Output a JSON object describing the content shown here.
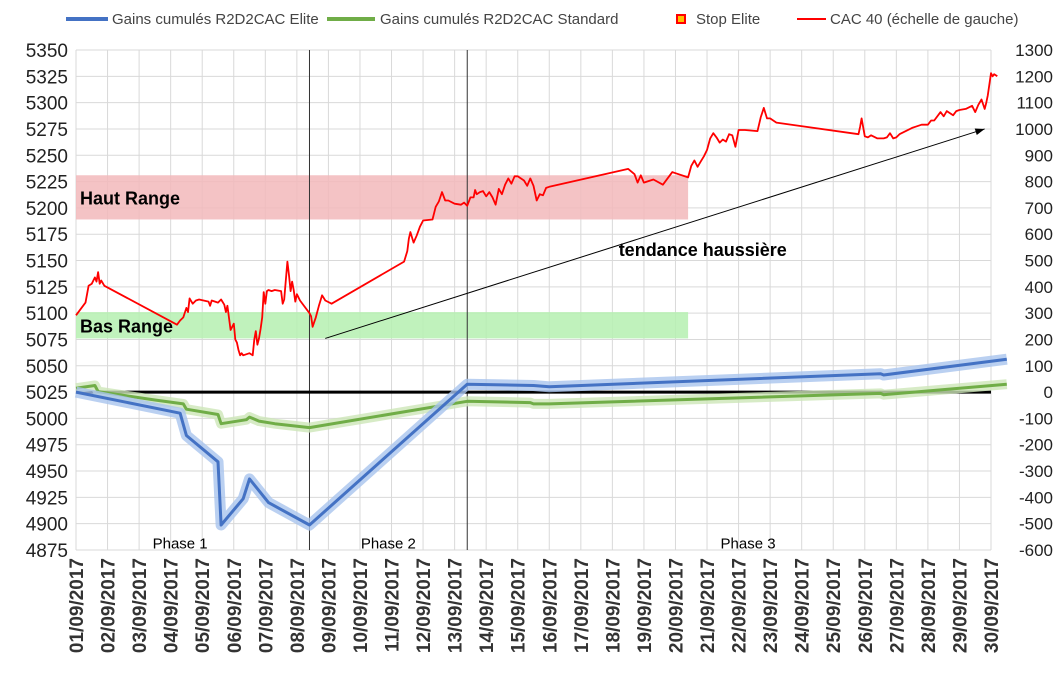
{
  "chart_data": {
    "type": "line",
    "legend_placement": "top",
    "grid": true,
    "colors": {
      "elite": "#4472c4",
      "elite_glow": "#a9c4ee",
      "standard": "#70ad47",
      "standard_glow": "#cde6b8",
      "cac40": "#ff0000",
      "stop_marker": "#ffc000",
      "haut_range": "#f2b8bb",
      "bas_range": "#b5f0b0",
      "zero_line": "#000000",
      "grid": "#d9d9d9"
    },
    "legend": [
      {
        "key": "elite",
        "label": "Gains cumulés R2D2CAC Elite",
        "kind": "line"
      },
      {
        "key": "standard",
        "label": "Gains cumulés R2D2CAC Standard",
        "kind": "line"
      },
      {
        "key": "stop",
        "label": "Stop Elite",
        "kind": "marker"
      },
      {
        "key": "cac40",
        "label": "CAC 40 (échelle de gauche)",
        "kind": "line"
      }
    ],
    "x_tick_labels": [
      "01/09/2017",
      "02/09/2017",
      "03/09/2017",
      "04/09/2017",
      "05/09/2017",
      "06/09/2017",
      "07/09/2017",
      "08/09/2017",
      "09/09/2017",
      "10/09/2017",
      "11/09/2017",
      "12/09/2017",
      "13/09/2017",
      "14/09/2017",
      "15/09/2017",
      "16/09/2017",
      "17/09/2017",
      "18/09/2017",
      "19/09/2017",
      "20/09/2017",
      "21/09/2017",
      "22/09/2017",
      "23/09/2017",
      "24/09/2017",
      "25/09/2017",
      "26/09/2017",
      "27/09/2017",
      "28/09/2017",
      "29/09/2017",
      "30/09/2017"
    ],
    "xlim": [
      0,
      29
    ],
    "y_left": {
      "ylim": [
        4875,
        5350
      ],
      "ticks": [
        4875,
        4900,
        4925,
        4950,
        4975,
        5000,
        5025,
        5050,
        5075,
        5100,
        5125,
        5150,
        5175,
        5200,
        5225,
        5250,
        5275,
        5300,
        5325,
        5350
      ]
    },
    "y_right": {
      "ylim": [
        -600,
        1300
      ],
      "ticks": [
        -600,
        -500,
        -400,
        -300,
        -200,
        -100,
        0,
        100,
        200,
        300,
        400,
        500,
        600,
        700,
        800,
        900,
        1000,
        1100,
        1200,
        1300
      ]
    },
    "bands": [
      {
        "label": "Haut Range",
        "x_start": 0,
        "x_end": 19.4,
        "y_low": 5189,
        "y_high": 5231,
        "color_key": "haut_range"
      },
      {
        "label": "Bas Range",
        "x_start": 0,
        "x_end": 19.4,
        "y_low": 5076,
        "y_high": 5101,
        "color_key": "bas_range"
      }
    ],
    "vertical_lines": [
      7.4,
      12.4
    ],
    "phases": [
      {
        "label": "Phase 1",
        "x": 3.3
      },
      {
        "label": "Phase 2",
        "x": 9.9
      },
      {
        "label": "Phase 3",
        "x": 21.3
      }
    ],
    "trend": {
      "label": "tendance haussière",
      "from": [
        7.9,
        5076
      ],
      "to": [
        28.8,
        5275
      ]
    },
    "series": [
      {
        "name": "CAC 40 (échelle de gauche)",
        "key": "cac40",
        "axis": "left",
        "points": [
          [
            0,
            5098
          ],
          [
            0.3,
            5110
          ],
          [
            0.4,
            5126
          ],
          [
            0.5,
            5128
          ],
          [
            0.6,
            5134
          ],
          [
            0.65,
            5130
          ],
          [
            0.7,
            5139
          ],
          [
            0.75,
            5128
          ],
          [
            0.8,
            5131
          ],
          [
            0.9,
            5126
          ],
          [
            3.2,
            5089
          ],
          [
            3.3,
            5093
          ],
          [
            3.4,
            5096
          ],
          [
            3.5,
            5105
          ],
          [
            3.55,
            5101
          ],
          [
            3.6,
            5114
          ],
          [
            3.7,
            5109
          ],
          [
            3.8,
            5112
          ],
          [
            3.9,
            5113
          ],
          [
            4.2,
            5111
          ],
          [
            4.25,
            5107
          ],
          [
            4.3,
            5112
          ],
          [
            4.5,
            5110
          ],
          [
            4.6,
            5113
          ],
          [
            4.7,
            5108
          ],
          [
            4.75,
            5101
          ],
          [
            4.8,
            5107
          ],
          [
            4.9,
            5084
          ],
          [
            5.0,
            5090
          ],
          [
            5.05,
            5075
          ],
          [
            5.1,
            5072
          ],
          [
            5.15,
            5065
          ],
          [
            5.2,
            5060
          ],
          [
            5.25,
            5062
          ],
          [
            5.3,
            5060
          ],
          [
            5.5,
            5062
          ],
          [
            5.6,
            5060
          ],
          [
            5.65,
            5075
          ],
          [
            5.7,
            5083
          ],
          [
            5.75,
            5070
          ],
          [
            5.8,
            5076
          ],
          [
            5.85,
            5085
          ],
          [
            5.9,
            5096
          ],
          [
            5.95,
            5120
          ],
          [
            6.0,
            5109
          ],
          [
            6.05,
            5121
          ],
          [
            6.1,
            5122
          ],
          [
            6.2,
            5121
          ],
          [
            6.3,
            5122
          ],
          [
            6.5,
            5121
          ],
          [
            6.55,
            5109
          ],
          [
            6.6,
            5113
          ],
          [
            6.7,
            5149
          ],
          [
            6.75,
            5136
          ],
          [
            6.8,
            5121
          ],
          [
            6.85,
            5130
          ],
          [
            6.9,
            5122
          ],
          [
            6.95,
            5111
          ],
          [
            7.0,
            5118
          ],
          [
            7.1,
            5112
          ],
          [
            7.4,
            5100
          ],
          [
            7.45,
            5097
          ],
          [
            7.5,
            5087
          ],
          [
            7.6,
            5096
          ],
          [
            7.7,
            5107
          ],
          [
            7.8,
            5117
          ],
          [
            7.9,
            5112
          ],
          [
            8.1,
            5109
          ],
          [
            10.4,
            5149
          ],
          [
            10.5,
            5159
          ],
          [
            10.55,
            5171
          ],
          [
            10.6,
            5177
          ],
          [
            10.7,
            5167
          ],
          [
            10.8,
            5174
          ],
          [
            10.9,
            5182
          ],
          [
            11.0,
            5188
          ],
          [
            11.3,
            5189
          ],
          [
            11.4,
            5201
          ],
          [
            11.5,
            5206
          ],
          [
            11.6,
            5215
          ],
          [
            11.7,
            5207
          ],
          [
            11.8,
            5207
          ],
          [
            12.0,
            5204
          ],
          [
            12.2,
            5203
          ],
          [
            12.3,
            5205
          ],
          [
            12.4,
            5202
          ],
          [
            12.5,
            5210
          ],
          [
            12.6,
            5210
          ],
          [
            12.65,
            5217
          ],
          [
            12.7,
            5213
          ],
          [
            12.8,
            5215
          ],
          [
            12.9,
            5216
          ],
          [
            13.0,
            5211
          ],
          [
            13.1,
            5215
          ],
          [
            13.2,
            5210
          ],
          [
            13.3,
            5203
          ],
          [
            13.4,
            5218
          ],
          [
            13.5,
            5213
          ],
          [
            13.6,
            5222
          ],
          [
            13.7,
            5228
          ],
          [
            13.8,
            5223
          ],
          [
            13.9,
            5230
          ],
          [
            14.0,
            5230
          ],
          [
            14.2,
            5226
          ],
          [
            14.3,
            5221
          ],
          [
            14.4,
            5228
          ],
          [
            14.5,
            5221
          ],
          [
            14.6,
            5207
          ],
          [
            14.7,
            5213
          ],
          [
            14.8,
            5212
          ],
          [
            14.9,
            5219
          ],
          [
            15.0,
            5220
          ],
          [
            17.5,
            5237
          ],
          [
            17.7,
            5232
          ],
          [
            17.8,
            5224
          ],
          [
            17.9,
            5231
          ],
          [
            18.0,
            5224
          ],
          [
            18.3,
            5227
          ],
          [
            18.6,
            5222
          ],
          [
            18.9,
            5234
          ],
          [
            19.0,
            5233
          ],
          [
            19.4,
            5229
          ],
          [
            19.5,
            5240
          ],
          [
            19.6,
            5245
          ],
          [
            19.7,
            5239
          ],
          [
            19.8,
            5244
          ],
          [
            19.9,
            5249
          ],
          [
            20.0,
            5255
          ],
          [
            20.1,
            5266
          ],
          [
            20.2,
            5271
          ],
          [
            20.3,
            5267
          ],
          [
            20.4,
            5262
          ],
          [
            20.5,
            5265
          ],
          [
            20.6,
            5263
          ],
          [
            20.7,
            5270
          ],
          [
            20.8,
            5269
          ],
          [
            20.9,
            5258
          ],
          [
            21.0,
            5274
          ],
          [
            21.2,
            5274
          ],
          [
            21.6,
            5273
          ],
          [
            21.7,
            5286
          ],
          [
            21.8,
            5295
          ],
          [
            21.9,
            5285
          ],
          [
            22.0,
            5285
          ],
          [
            22.2,
            5281
          ],
          [
            24.8,
            5270
          ],
          [
            24.85,
            5277
          ],
          [
            24.9,
            5285
          ],
          [
            25.0,
            5268
          ],
          [
            25.1,
            5267
          ],
          [
            25.2,
            5269
          ],
          [
            25.4,
            5266
          ],
          [
            25.6,
            5266
          ],
          [
            25.7,
            5267
          ],
          [
            25.8,
            5271
          ],
          [
            25.9,
            5266
          ],
          [
            26.0,
            5267
          ],
          [
            26.1,
            5270
          ],
          [
            26.3,
            5273
          ],
          [
            26.5,
            5276
          ],
          [
            26.6,
            5277
          ],
          [
            26.8,
            5279
          ],
          [
            27.0,
            5279
          ],
          [
            27.1,
            5283
          ],
          [
            27.2,
            5283
          ],
          [
            27.4,
            5291
          ],
          [
            27.5,
            5287
          ],
          [
            27.6,
            5292
          ],
          [
            27.8,
            5288
          ],
          [
            27.9,
            5292
          ],
          [
            28.0,
            5293
          ],
          [
            28.2,
            5294
          ],
          [
            28.4,
            5297
          ],
          [
            28.5,
            5291
          ],
          [
            28.6,
            5298
          ],
          [
            28.7,
            5303
          ],
          [
            28.8,
            5294
          ],
          [
            28.85,
            5300
          ],
          [
            28.9,
            5307
          ],
          [
            29.0,
            5328
          ],
          [
            29.05,
            5325
          ],
          [
            29.1,
            5327
          ],
          [
            29.2,
            5325
          ]
        ]
      },
      {
        "name": "Gains cumulés R2D2CAC Elite",
        "key": "elite",
        "axis": "right",
        "points": [
          [
            0,
            0
          ],
          [
            3.3,
            -80
          ],
          [
            3.5,
            -165
          ],
          [
            4.5,
            -265
          ],
          [
            4.6,
            -505
          ],
          [
            5.3,
            -405
          ],
          [
            5.5,
            -330
          ],
          [
            6.1,
            -420
          ],
          [
            7.4,
            -505
          ],
          [
            12.4,
            30
          ],
          [
            14.5,
            25
          ],
          [
            15.0,
            20
          ],
          [
            25.5,
            70
          ],
          [
            25.6,
            65
          ],
          [
            29.5,
            125
          ]
        ]
      },
      {
        "name": "Gains cumulés R2D2CAC Standard",
        "key": "standard",
        "axis": "right",
        "points": [
          [
            0,
            15
          ],
          [
            0.6,
            25
          ],
          [
            0.7,
            2
          ],
          [
            2.5,
            -30
          ],
          [
            3.4,
            -45
          ],
          [
            3.5,
            -65
          ],
          [
            4.5,
            -85
          ],
          [
            4.6,
            -120
          ],
          [
            5.4,
            -105
          ],
          [
            5.5,
            -95
          ],
          [
            5.8,
            -110
          ],
          [
            6.3,
            -120
          ],
          [
            7.4,
            -135
          ],
          [
            12.4,
            -35
          ],
          [
            14.4,
            -40
          ],
          [
            14.5,
            -45
          ],
          [
            15.0,
            -45
          ],
          [
            25.5,
            -5
          ],
          [
            25.6,
            -10
          ],
          [
            29.5,
            30
          ]
        ]
      }
    ],
    "zero_line_right": 0
  }
}
